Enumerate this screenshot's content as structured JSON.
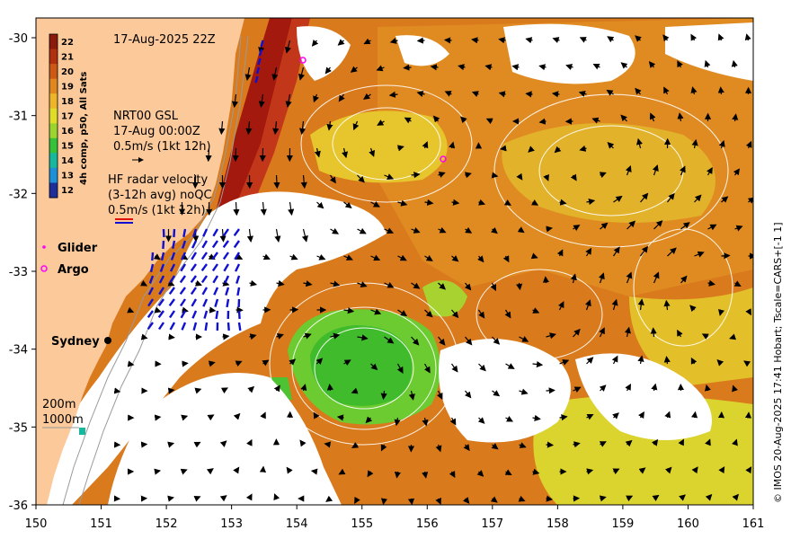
{
  "header": {
    "timestamp": "17-Aug-2025 22Z"
  },
  "colorbar": {
    "title": "4h comp, p50, All Sats",
    "ticks": [
      "22",
      "21",
      "20",
      "19",
      "18",
      "17",
      "16",
      "15",
      "14",
      "13",
      "12"
    ],
    "colors": [
      "#8b1a0e",
      "#b0300f",
      "#cc5a16",
      "#e0881f",
      "#eeb52a",
      "#e0dc2a",
      "#9bd431",
      "#35c23a",
      "#18b89e",
      "#1f8fd8",
      "#1f2f9a"
    ]
  },
  "gsl_legend": {
    "line1": "NRT00 GSL",
    "line2": "17-Aug 00:00Z",
    "line3": "0.5m/s (1kt 12h)"
  },
  "radar_legend": {
    "line1": "HF radar velocity",
    "line2": "(3-12h avg) noQC",
    "line3": "0.5m/s (1kt 12h)"
  },
  "markers": {
    "glider_label": "Glider",
    "argo_label": "Argo",
    "city_label": "Sydney"
  },
  "depth_legend": {
    "line1": "200m",
    "line2": "1000m"
  },
  "axes": {
    "x_ticks": [
      "150",
      "151",
      "152",
      "153",
      "154",
      "155",
      "156",
      "157",
      "158",
      "159",
      "160",
      "161"
    ],
    "y_ticks": [
      "-30",
      "-31",
      "-32",
      "-33",
      "-34",
      "-35",
      "-36"
    ]
  },
  "credit": "© IMOS 20-Aug-2025 17:41 Hobart; Tscale=CARS+[-1 1]",
  "colors": {
    "land": "#fbc99a",
    "ocean_warm": "#d4761c",
    "cloud": "#ffffff",
    "current_core": "#a4190f",
    "eddy_green": "#3fc12f",
    "radar_arrow": "#1010d0",
    "magenta": "#ff00ff"
  }
}
